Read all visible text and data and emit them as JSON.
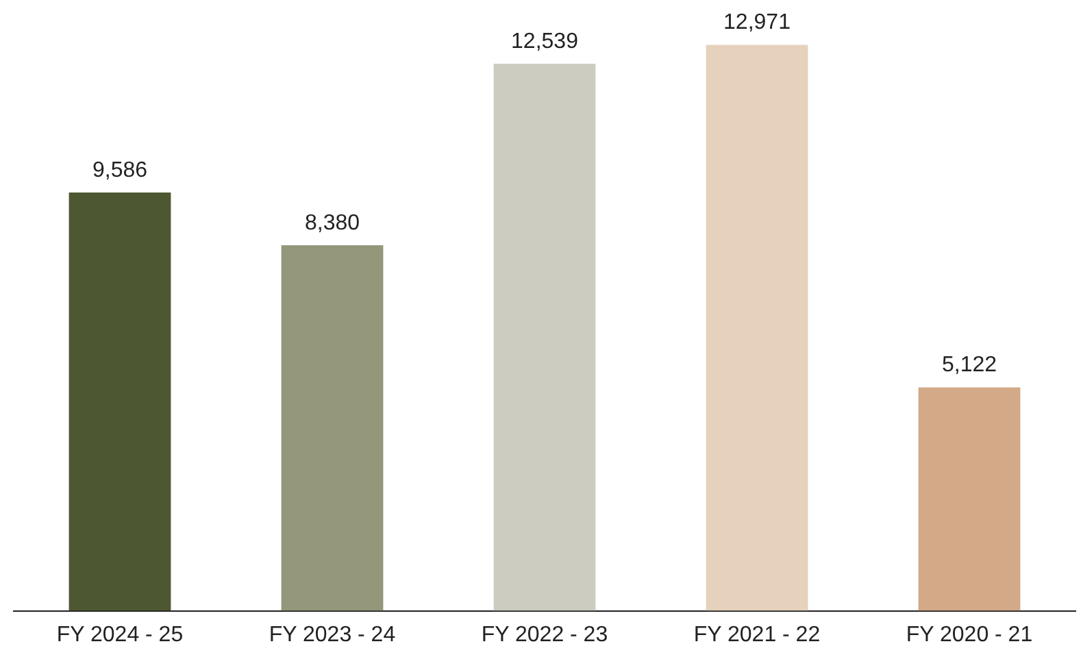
{
  "chart_data": {
    "type": "bar",
    "categories": [
      "FY 2024 - 25",
      "FY 2023 - 24",
      "FY 2022 - 23",
      "FY 2021 - 22",
      "FY 2020 - 21"
    ],
    "values": [
      9586,
      8380,
      12539,
      12971,
      5122
    ],
    "colors": [
      "#4d5832",
      "#95977b",
      "#cdccc0",
      "#e6d1bd",
      "#d3a987"
    ],
    "value_labels": [
      "9,586",
      "8,380",
      "12,539",
      "12,971",
      "5,122"
    ],
    "grid": false,
    "legend": false
  }
}
